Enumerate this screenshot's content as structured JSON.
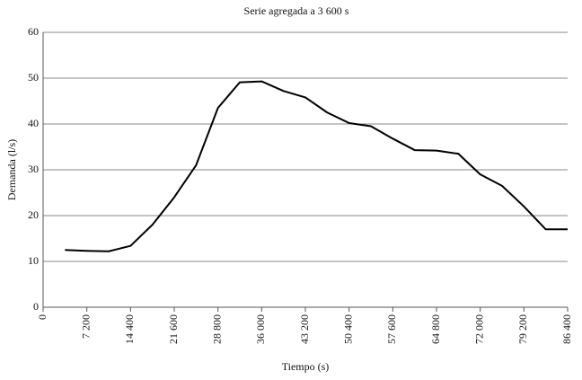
{
  "chart_data": {
    "type": "line",
    "title": "Serie agregada a 3 600 s",
    "x_label": "Tiempo (s)",
    "y_label": "Demanda (l/s)",
    "x": [
      3600,
      7200,
      10800,
      14400,
      18000,
      21600,
      25200,
      28800,
      32400,
      36000,
      39600,
      43200,
      46800,
      50400,
      54000,
      57600,
      61200,
      64800,
      68400,
      72000,
      75600,
      79200,
      82800,
      86400
    ],
    "series": [
      {
        "name": "Demanda",
        "color": "#000000",
        "values": [
          12.5,
          12.3,
          12.2,
          13.4,
          18,
          24,
          31,
          43.5,
          49.1,
          49.3,
          47.2,
          45.8,
          42.5,
          40.2,
          39.5,
          36.8,
          34.3,
          34.2,
          33.5,
          29,
          26.5,
          22,
          17,
          17
        ]
      }
    ],
    "xlim": [
      0,
      86400
    ],
    "xticks": [
      0,
      {
        "value": 7200,
        "label": "7 200"
      },
      {
        "value": 14400,
        "label": "14 400"
      },
      {
        "value": 21600,
        "label": "21 600"
      },
      {
        "value": 28800,
        "label": "28 800"
      },
      {
        "value": 36000,
        "label": "36 000"
      },
      {
        "value": 43200,
        "label": "43 200"
      },
      {
        "value": 50400,
        "label": "50 400"
      },
      {
        "value": 57600,
        "label": "57 600"
      },
      {
        "value": 64800,
        "label": "64 800"
      },
      {
        "value": 72000,
        "label": "72 000"
      },
      {
        "value": 79200,
        "label": "79 200"
      },
      {
        "value": 86400,
        "label": "86 400"
      }
    ],
    "ylim": [
      0,
      60
    ],
    "yticks": [
      0,
      10,
      20,
      30,
      40,
      50,
      60
    ],
    "grid": true
  }
}
